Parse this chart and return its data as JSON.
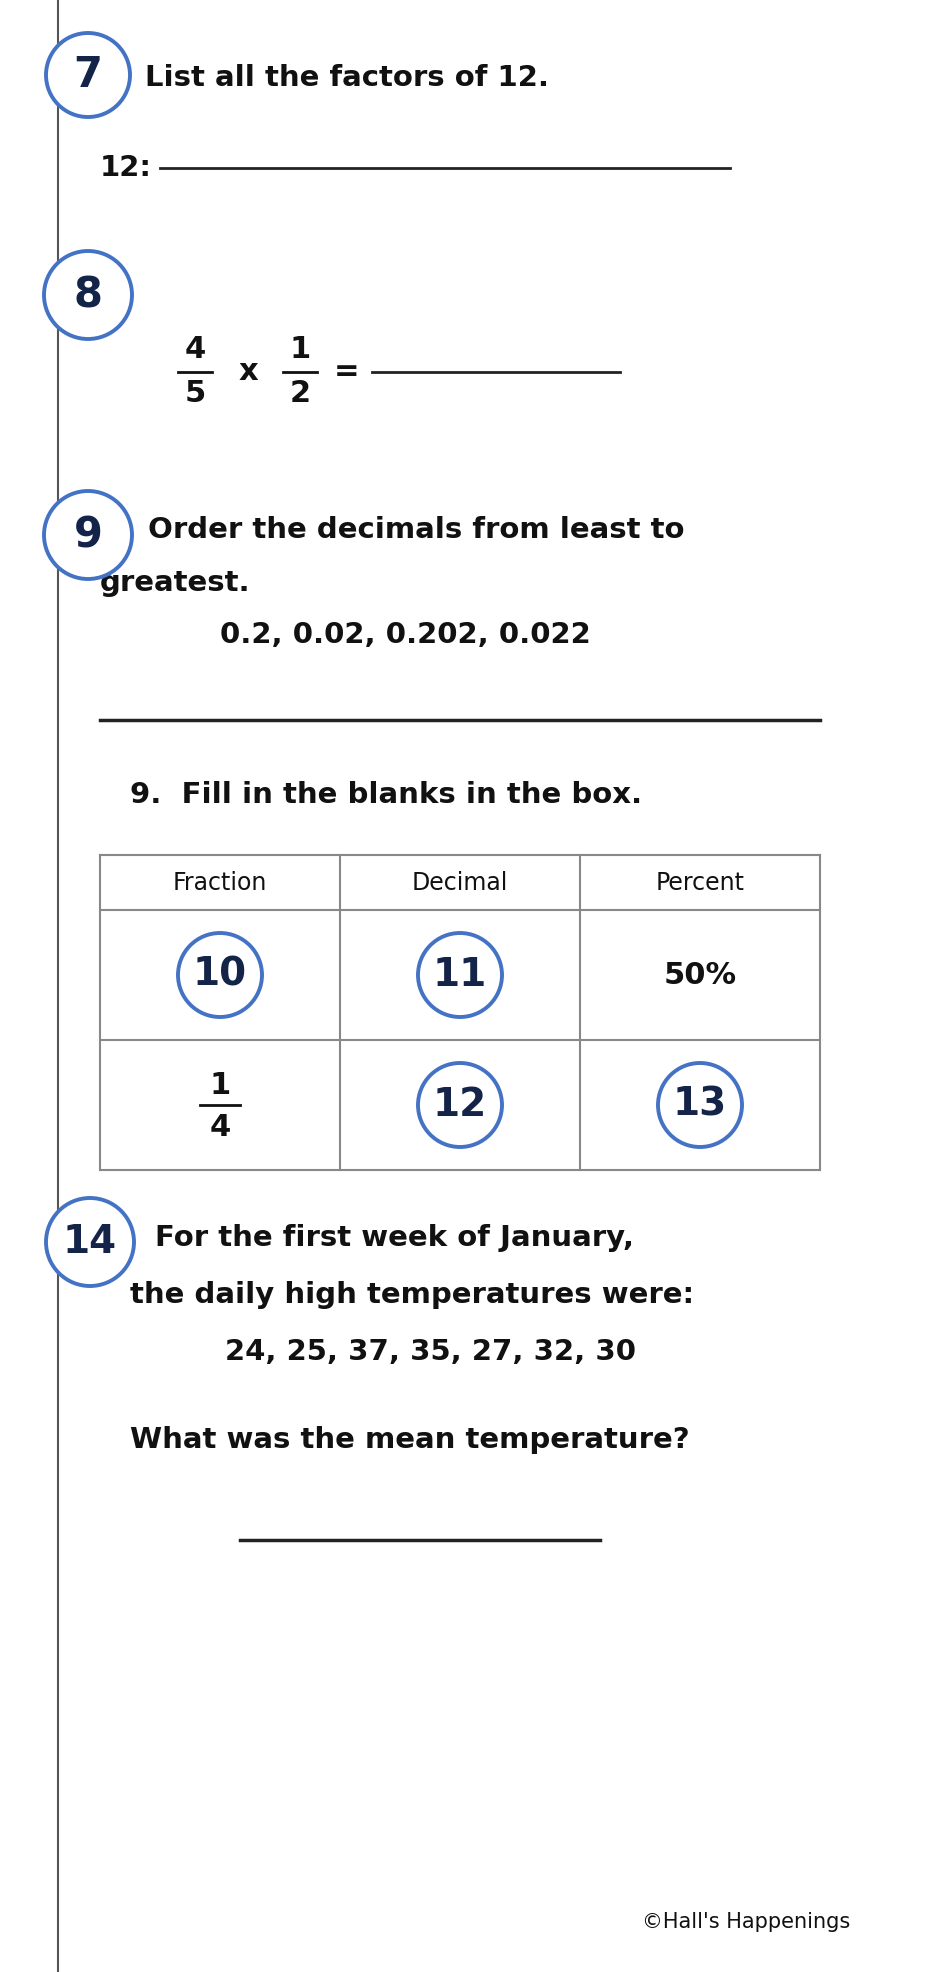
{
  "bg_color": "#ffffff",
  "circle_color": "#4472c4",
  "circle_text_color": "#132448",
  "text_color": "#111111",
  "left_line_color": "#555555",
  "line_color": "#222222",
  "table_border_color": "#888888",
  "q7_num": "7",
  "q7_text": "List all the factors of 12.",
  "q7_label": "12:",
  "q8_num": "8",
  "q8_frac_num": "4",
  "q8_frac_den": "5",
  "q8_times": "x",
  "q8_frac2_num": "1",
  "q8_frac2_den": "2",
  "q8_equals": "=",
  "q9_num": "9",
  "q9_text1": "Order the decimals from least to",
  "q9_text2": "greatest.",
  "q9_decimals": "0.2, 0.02, 0.202, 0.022",
  "q9b_text": "9.  Fill in the blanks in the box.",
  "table_headers": [
    "Fraction",
    "Decimal",
    "Percent"
  ],
  "q14_num": "14",
  "q14_text1": "For the first week of January,",
  "q14_text2": "the daily high temperatures were:",
  "q14_temps": "24, 25, 37, 35, 27, 32, 30",
  "q14_question": "What was the mean temperature?",
  "footer": "©Hall's Happenings",
  "page_width": 9.33,
  "page_height": 19.72,
  "dpi": 100
}
